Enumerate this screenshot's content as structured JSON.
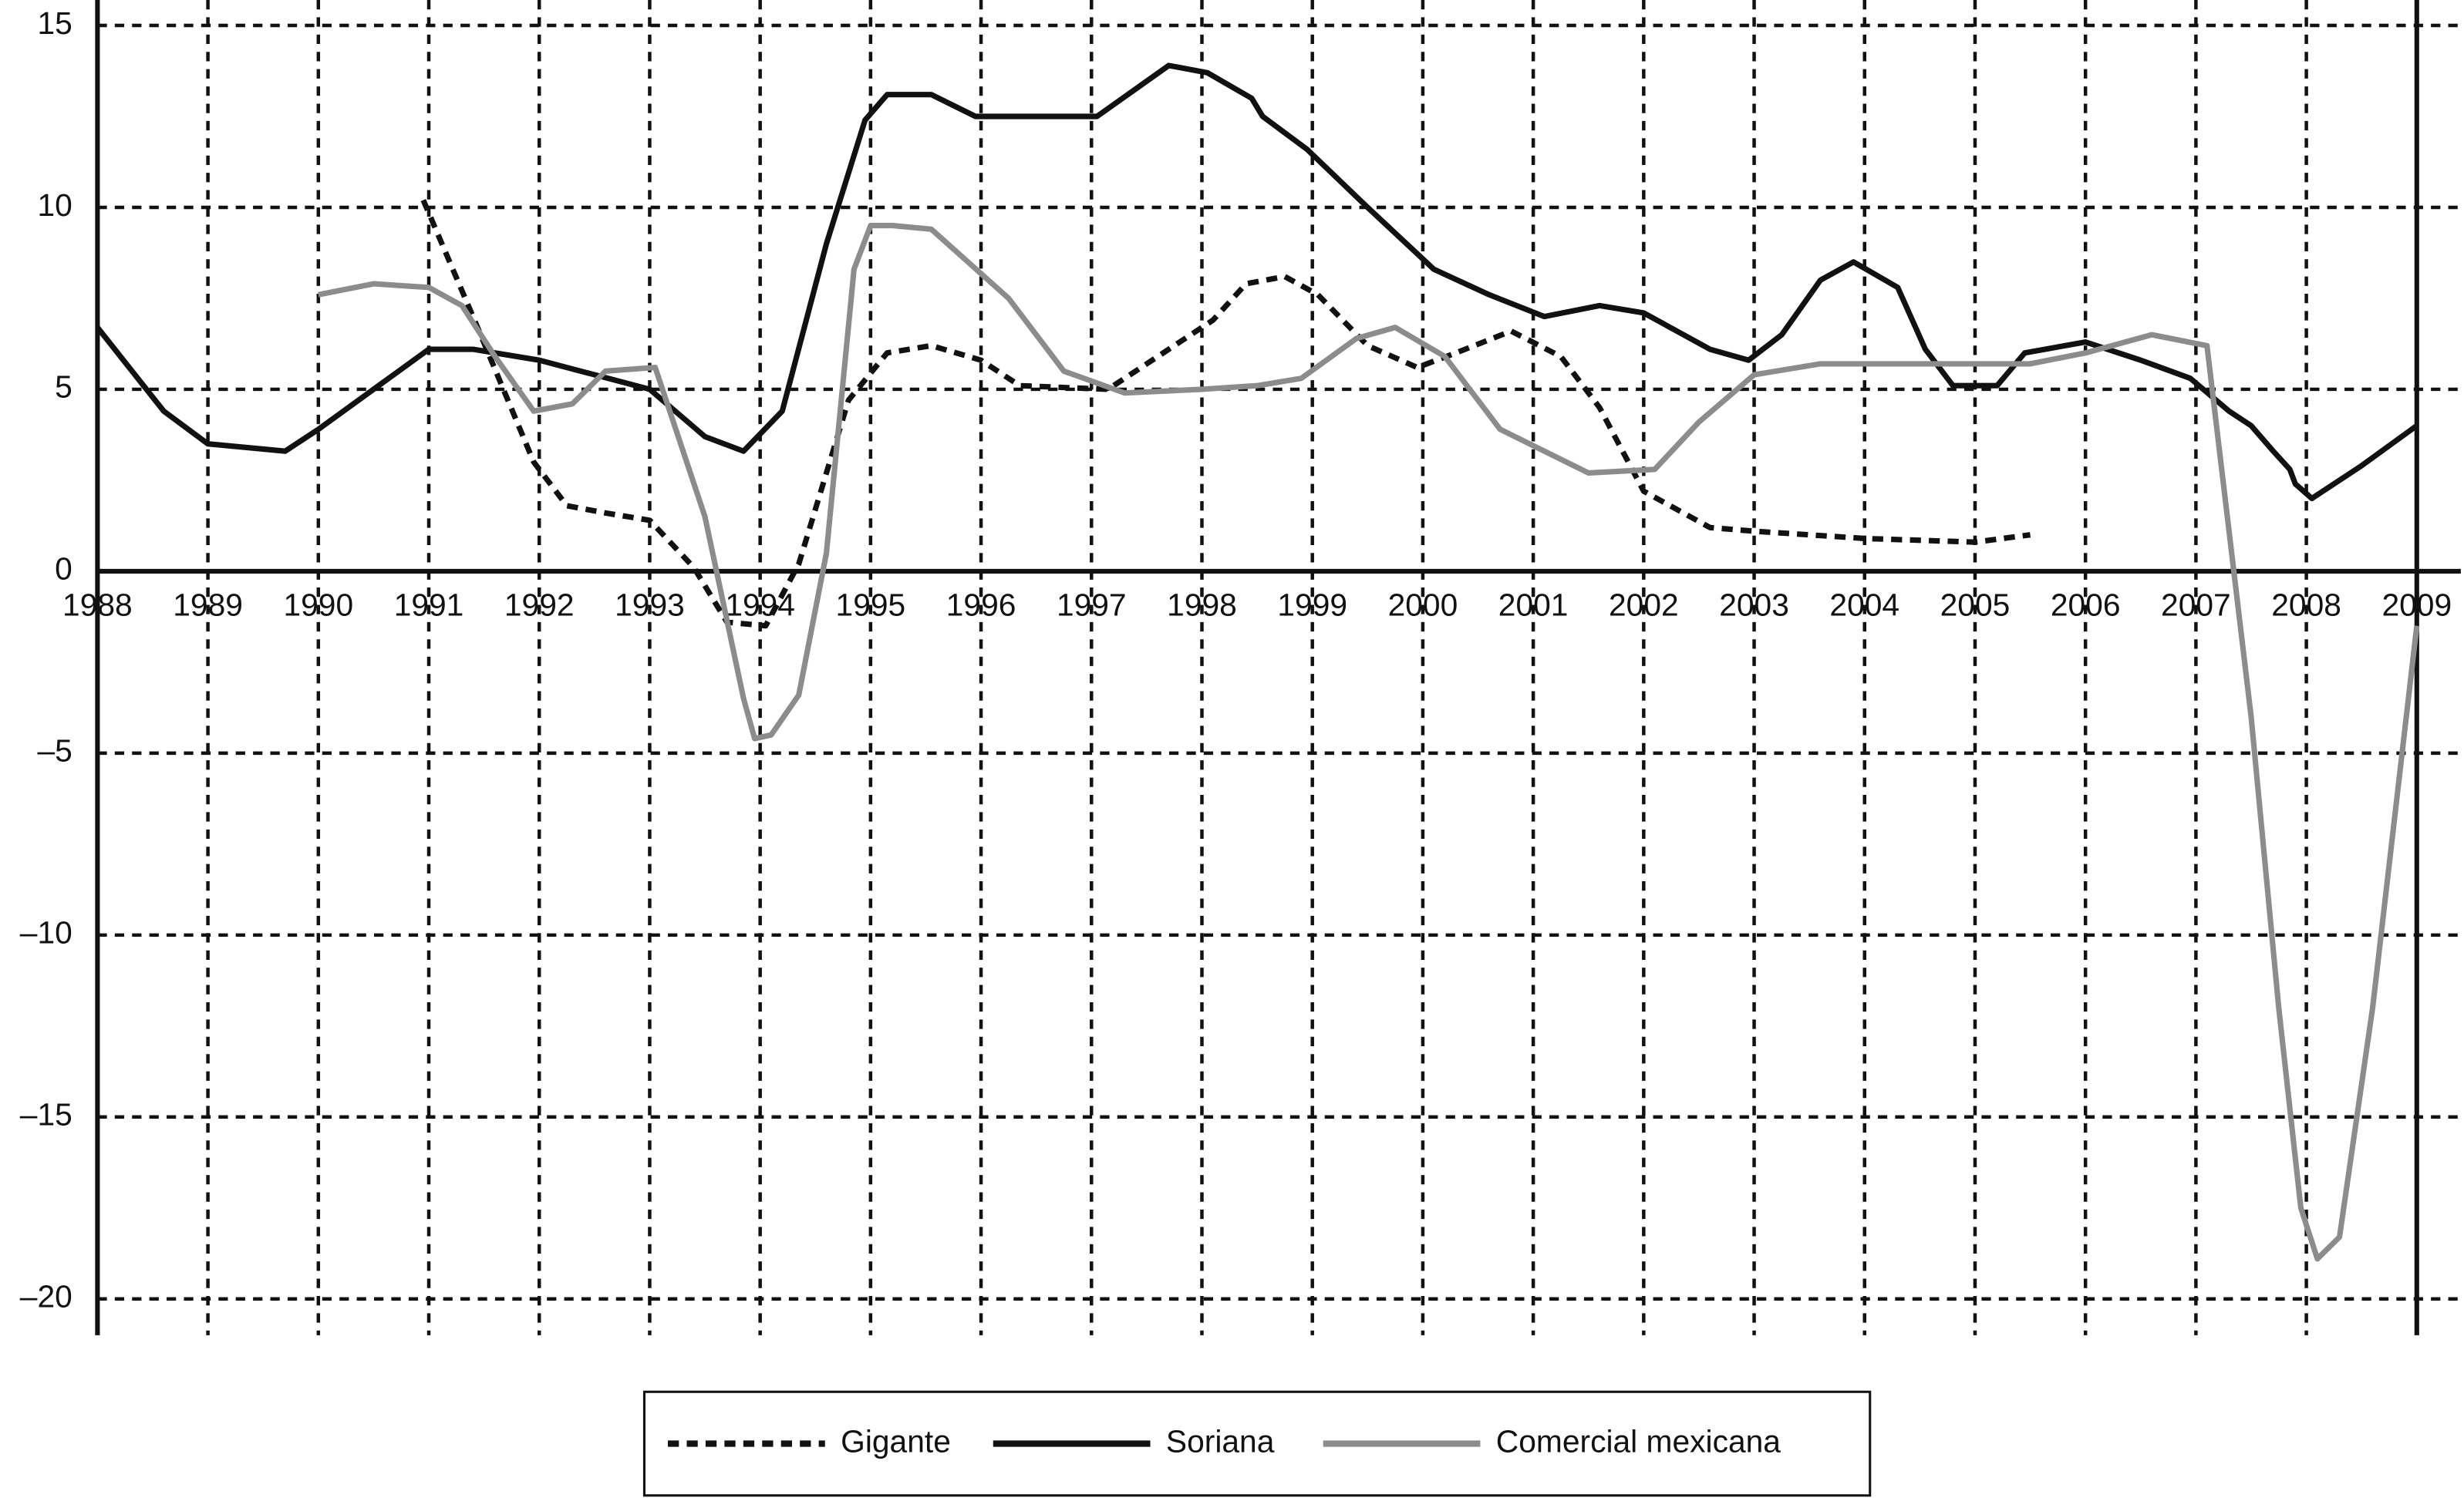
{
  "chart_data": {
    "type": "line",
    "xlim": [
      1988,
      2009
    ],
    "ylim": [
      -21,
      15.7
    ],
    "xticks": [
      1988,
      1989,
      1990,
      1991,
      1992,
      1993,
      1994,
      1995,
      1996,
      1997,
      1998,
      1999,
      2000,
      2001,
      2002,
      2003,
      2004,
      2005,
      2006,
      2007,
      2008,
      2009
    ],
    "yticks": [
      15,
      10,
      5,
      0,
      {
        "value": -5,
        "label": "–5"
      },
      {
        "value": -10,
        "label": "–10"
      },
      {
        "value": -15,
        "label": "–15"
      },
      {
        "value": -20,
        "label": "–20"
      }
    ],
    "grid": true,
    "legend": "bottom",
    "series": [
      {
        "name": "Gigante",
        "color": "#111111",
        "style": "dashed",
        "x": [
          1990.95,
          1991.4,
          1991.95,
          1992.25,
          1992.6,
          1993.0,
          1993.4,
          1993.7,
          1994.05,
          1994.35,
          1994.8,
          1995.15,
          1995.55,
          1996.0,
          1996.35,
          1997.15,
          1997.7,
          1998.1,
          1998.4,
          1998.75,
          1999.05,
          1999.5,
          1999.95,
          2000.3,
          2000.8,
          2001.25,
          2001.6,
          2002.0,
          2002.6,
          2003.0,
          2004.0,
          2005.0,
          2005.5
        ],
        "values": [
          10.2,
          7.0,
          3.0,
          1.8,
          1.6,
          1.4,
          0.1,
          -1.4,
          -1.5,
          0.2,
          4.7,
          6.0,
          6.2,
          5.8,
          5.1,
          5.0,
          6.1,
          6.9,
          7.9,
          8.1,
          7.6,
          6.2,
          5.6,
          6.0,
          6.6,
          5.9,
          4.5,
          2.2,
          1.2,
          1.1,
          0.9,
          0.8,
          1.0
        ]
      },
      {
        "name": "Soriana",
        "color": "#111111",
        "style": "solid",
        "x": [
          1988.0,
          1988.6,
          1989.0,
          1989.7,
          1990.0,
          1990.5,
          1991.0,
          1991.4,
          1992.0,
          1992.5,
          1993.0,
          1993.5,
          1993.85,
          1994.2,
          1994.6,
          1994.95,
          1995.15,
          1995.55,
          1995.95,
          1997.05,
          1997.7,
          1998.05,
          1998.45,
          1998.55,
          1998.95,
          1999.5,
          2000.1,
          2000.6,
          2001.1,
          2001.6,
          2002.0,
          2002.6,
          2002.95,
          2003.25,
          2003.6,
          2003.9,
          2004.3,
          2004.55,
          2004.8,
          2005.2,
          2005.45,
          2006.0,
          2006.5,
          2006.95,
          2007.3,
          2007.5,
          2007.7,
          2007.85,
          2007.9,
          2008.05,
          2008.5,
          2009.0
        ],
        "values": [
          6.7,
          4.4,
          3.5,
          3.3,
          3.9,
          5.0,
          6.1,
          6.1,
          5.8,
          5.4,
          5.0,
          3.7,
          3.3,
          4.4,
          9.0,
          12.4,
          13.1,
          13.1,
          12.5,
          12.5,
          13.9,
          13.7,
          13.0,
          12.5,
          11.6,
          10.0,
          8.3,
          7.6,
          7.0,
          7.3,
          7.1,
          6.1,
          5.8,
          6.5,
          8.0,
          8.5,
          7.8,
          6.1,
          5.1,
          5.1,
          6.0,
          6.3,
          5.8,
          5.3,
          4.4,
          4.0,
          3.3,
          2.8,
          2.4,
          2.0,
          2.9,
          4.0
        ]
      },
      {
        "name": "Comercial mexicana",
        "color": "#8c8c8c",
        "style": "solid",
        "x": [
          1990.0,
          1990.5,
          1991.0,
          1991.3,
          1991.6,
          1991.95,
          1992.3,
          1992.6,
          1993.05,
          1993.5,
          1993.85,
          1993.95,
          1994.1,
          1994.35,
          1994.6,
          1994.85,
          1995.0,
          1995.2,
          1995.55,
          1996.25,
          1996.75,
          1997.3,
          1998.0,
          1998.5,
          1998.9,
          1999.4,
          1999.75,
          2000.2,
          2000.7,
          2001.5,
          2002.1,
          2002.5,
          2003.0,
          2003.6,
          2005.0,
          2005.5,
          2006.0,
          2006.6,
          2007.1,
          2007.5,
          2007.75,
          2007.95,
          2008.1,
          2008.3,
          2008.6,
          2009.0
        ],
        "values": [
          7.6,
          7.9,
          7.8,
          7.3,
          5.9,
          4.4,
          4.6,
          5.5,
          5.6,
          1.5,
          -3.5,
          -4.6,
          -4.5,
          -3.4,
          0.5,
          8.3,
          9.5,
          9.5,
          9.4,
          7.5,
          5.5,
          4.9,
          5.0,
          5.1,
          5.3,
          6.4,
          6.7,
          5.9,
          3.9,
          2.7,
          2.8,
          4.1,
          5.4,
          5.7,
          5.7,
          5.7,
          6.0,
          6.5,
          6.2,
          -4.0,
          -12.0,
          -17.5,
          -18.9,
          -18.3,
          -12.0,
          -1.5
        ]
      }
    ]
  }
}
